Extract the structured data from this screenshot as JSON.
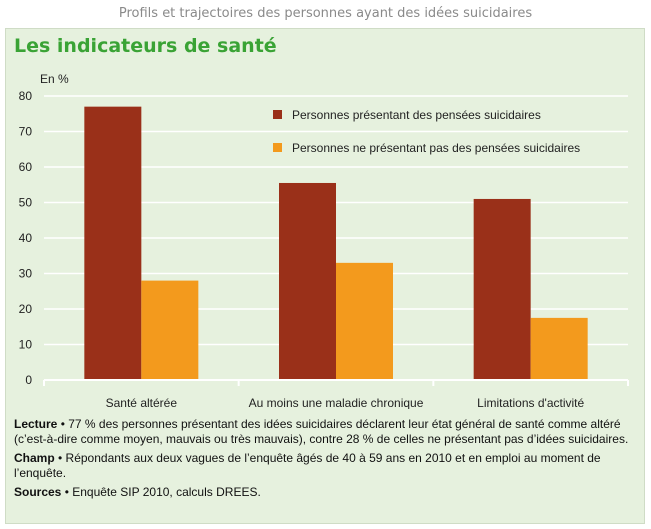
{
  "header": {
    "title": "Profils et trajectoires des personnes ayant des idées suicidaires"
  },
  "panel": {
    "title": "Les indicateurs de santé"
  },
  "colors": {
    "series1": "#9a3019",
    "series2": "#f39a1d",
    "title": "#3aa335",
    "background": "#e6f1de"
  },
  "chart_data": {
    "type": "bar",
    "ylabel": "En %",
    "ylim": [
      0,
      80
    ],
    "yticks": [
      0,
      10,
      20,
      30,
      40,
      50,
      60,
      70,
      80
    ],
    "categories": [
      "Santé altérée",
      "Au moins une maladie chronique",
      "Limitations d'activité"
    ],
    "series": [
      {
        "name": "Personnes présentant des pensées suicidaires",
        "values": [
          77,
          55.5,
          51
        ]
      },
      {
        "name": "Personnes ne présentant pas des pensées suicidaires",
        "values": [
          28,
          33,
          17.5
        ]
      }
    ],
    "grid": true,
    "legend": "top-right"
  },
  "notes": {
    "lecture": {
      "label": "Lecture",
      "text": " • 77 % des personnes présentant des idées suicidaires déclarent leur état général de santé comme altéré (c’est-à-dire comme moyen, mauvais ou très mauvais), contre 28 % de celles ne présentant pas d’idées suicidaires."
    },
    "champ": {
      "label": "Champ",
      "text": " • Répondants aux deux vagues de l’enquête âgés de 40 à 59 ans en 2010 et en emploi au moment de l’enquête."
    },
    "sources": {
      "label": "Sources",
      "text": " • Enquête SIP 2010, calculs DREES."
    }
  }
}
